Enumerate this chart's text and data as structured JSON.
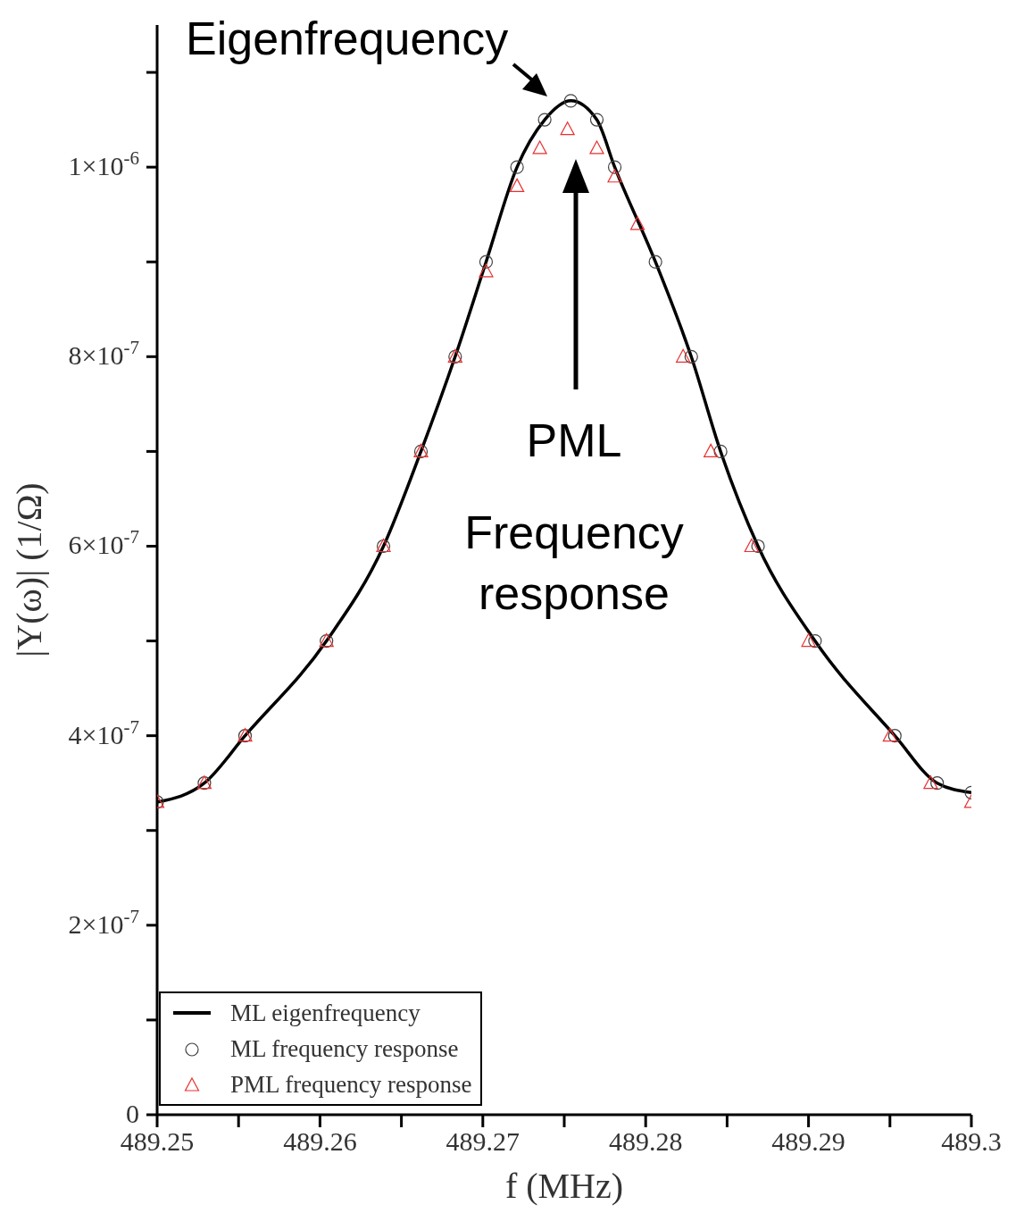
{
  "chart_data": {
    "type": "line",
    "xlabel": "f (MHz)",
    "ylabel": "|Y(ω)| (1/Ω)",
    "xlim": [
      489.25,
      489.3
    ],
    "xticks": [
      489.25,
      {
        "value": 489.255,
        "label": null
      },
      489.26,
      {
        "value": 489.265,
        "label": null
      },
      489.27,
      {
        "value": 489.275,
        "label": null
      },
      489.28,
      {
        "value": 489.285,
        "label": null
      },
      489.29,
      {
        "value": 489.295,
        "label": null
      },
      489.3
    ],
    "ylim": [
      0,
      1.15e-06
    ],
    "yticks": [
      {
        "value": 0,
        "label": "0"
      },
      {
        "value": 1e-07,
        "label": null
      },
      {
        "value": 2e-07,
        "label": "2×10$^{-7}$"
      },
      {
        "value": 3e-07,
        "label": null
      },
      {
        "value": 4e-07,
        "label": "4×10$^{-7}$"
      },
      {
        "value": 5e-07,
        "label": null
      },
      {
        "value": 6e-07,
        "label": "6×10$^{-7}$"
      },
      {
        "value": 7e-07,
        "label": null
      },
      {
        "value": 8e-07,
        "label": "8×10$^{-7}$"
      },
      {
        "value": 9e-07,
        "label": null
      },
      {
        "value": 1e-06,
        "label": "1×10$^{-6}$"
      },
      {
        "value": 1.1e-06,
        "label": null
      }
    ],
    "grid": false,
    "legend": "bottom left",
    "series": [
      {
        "name": "ML eigenfrequency",
        "marker": "none",
        "color": "#000000",
        "x": [
          489.25,
          489.2529,
          489.2554,
          489.2604,
          489.2639,
          489.2662,
          489.2683,
          489.2702,
          489.2721,
          489.2738,
          489.2754,
          489.277,
          489.2781,
          489.2806,
          489.2828,
          489.2846,
          489.2869,
          489.2904,
          489.2953,
          489.2979,
          489.3
        ],
        "values": [
          3.3e-07,
          3.5e-07,
          4e-07,
          5e-07,
          6e-07,
          7e-07,
          8e-07,
          9e-07,
          1e-06,
          1.05e-06,
          1.07e-06,
          1.05e-06,
          1e-06,
          9e-07,
          8e-07,
          7e-07,
          6e-07,
          5e-07,
          4e-07,
          3.5e-07,
          3.4e-07
        ]
      },
      {
        "name": "ML frequency response",
        "type": "scatter",
        "marker": "circle",
        "color": "#404040",
        "x": [
          489.25,
          489.2529,
          489.2554,
          489.2604,
          489.2639,
          489.2662,
          489.2683,
          489.2702,
          489.2721,
          489.2738,
          489.2754,
          489.277,
          489.2781,
          489.2806,
          489.2828,
          489.2846,
          489.2869,
          489.2904,
          489.2953,
          489.2979,
          489.3
        ],
        "values": [
          3.3e-07,
          3.5e-07,
          4e-07,
          5e-07,
          6e-07,
          7e-07,
          8e-07,
          9e-07,
          1e-06,
          1.05e-06,
          1.07e-06,
          1.05e-06,
          1e-06,
          9e-07,
          8e-07,
          7e-07,
          6e-07,
          5e-07,
          4e-07,
          3.5e-07,
          3.4e-07
        ]
      },
      {
        "name": "PML frequency response",
        "type": "scatter",
        "marker": "triangle",
        "color": "#e83030",
        "x": [
          489.25,
          489.2529,
          489.2554,
          489.2604,
          489.2639,
          489.2662,
          489.2683,
          489.2702,
          489.2721,
          489.2735,
          489.2752,
          489.277,
          489.2781,
          489.2795,
          489.2823,
          489.284,
          489.2865,
          489.29,
          489.295,
          489.2975,
          489.3
        ],
        "values": [
          3.3e-07,
          3.5e-07,
          4e-07,
          5e-07,
          6e-07,
          7e-07,
          8e-07,
          8.9e-07,
          9.8e-07,
          1.02e-06,
          1.04e-06,
          1.02e-06,
          9.9e-07,
          9.4e-07,
          8e-07,
          7e-07,
          6e-07,
          5e-07,
          4e-07,
          3.5e-07,
          3.3e-07
        ]
      }
    ],
    "annotations": [
      "Eigenfrequency",
      "PML",
      "Frequency response"
    ]
  }
}
